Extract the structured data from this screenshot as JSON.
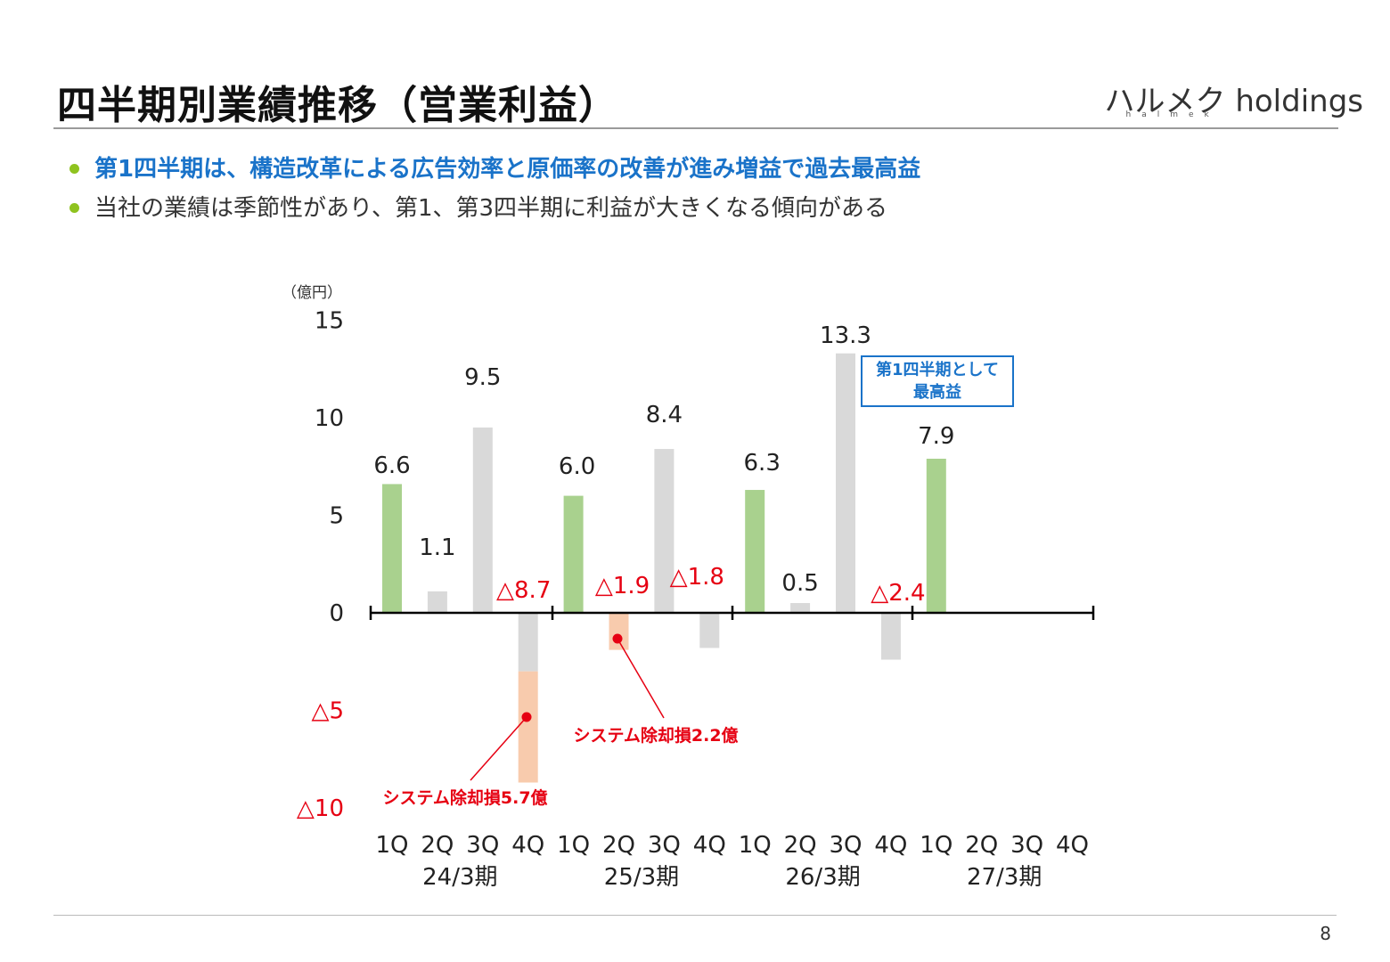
{
  "page": {
    "title": "四半期別業績推移（営業利益）",
    "logo_main": "ハルメク holdings",
    "logo_sub": "halmek",
    "bullets": [
      "第1四半期は、構造改革による広告効率と原価率の改善が進み増益で過去最高益",
      "当社の業績は季節性があり、第1、第3四半期に利益が大きくなる傾向がある"
    ],
    "page_number": "8"
  },
  "colors": {
    "q1_bar": "#a9d18e",
    "other_bar": "#d9d9d9",
    "write_off": "#f8cbad",
    "negative_text": "#e60012",
    "accent_blue": "#1a73c9",
    "bullet_dot": "#8fc31f"
  },
  "chart_data": {
    "type": "bar",
    "unit_label": "（億円）",
    "ylim": [
      -10,
      15
    ],
    "yticks": [
      {
        "value": 15,
        "label": "15"
      },
      {
        "value": 10,
        "label": "10"
      },
      {
        "value": 5,
        "label": "5"
      },
      {
        "value": 0,
        "label": "0"
      },
      {
        "value": -5,
        "label": "△5"
      },
      {
        "value": -10,
        "label": "△10"
      }
    ],
    "categories": [
      "1Q",
      "2Q",
      "3Q",
      "4Q",
      "1Q",
      "2Q",
      "3Q",
      "4Q",
      "1Q",
      "2Q",
      "3Q",
      "4Q",
      "1Q",
      "2Q",
      "3Q",
      "4Q"
    ],
    "groups": [
      "24/3期",
      "25/3期",
      "26/3期",
      "27/3期"
    ],
    "values": [
      6.6,
      1.1,
      9.5,
      -8.7,
      6.0,
      -1.9,
      8.4,
      -1.8,
      6.3,
      0.5,
      13.3,
      -2.4,
      7.9,
      null,
      null,
      null
    ],
    "labels": [
      "6.6",
      "1.1",
      "9.5",
      "△8.7",
      "6.0",
      "△1.9",
      "8.4",
      "△1.8",
      "6.3",
      "0.5",
      "13.3",
      "△2.4",
      "7.9",
      "",
      "",
      ""
    ],
    "write_offs": [
      {
        "index": 3,
        "amount": -5.7,
        "label": "システム除却損5.7億"
      },
      {
        "index": 5,
        "amount": -2.2,
        "label": "システム除却損2.2億"
      }
    ],
    "callout": {
      "index": 10,
      "lines": [
        "第1四半期として",
        "最高益"
      ]
    }
  }
}
